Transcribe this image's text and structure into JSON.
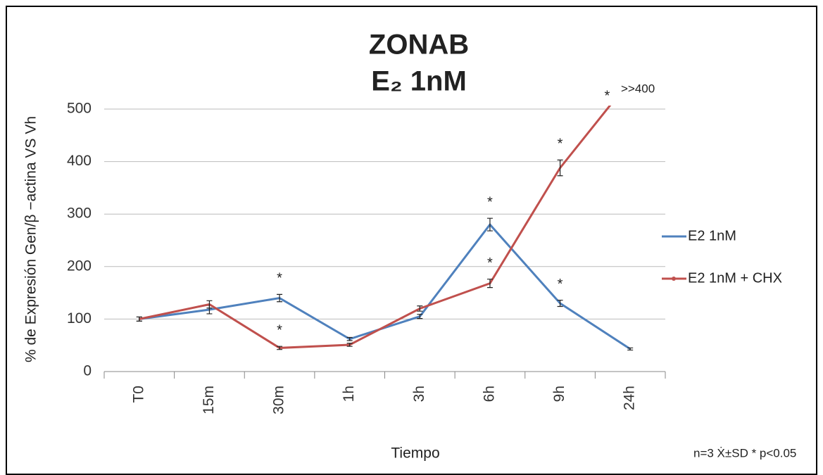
{
  "chart_data": {
    "type": "line",
    "title": [
      "ZONAB",
      "E₂ 1nM"
    ],
    "ylabel": "% de Expresión Gen/β −actina VS Vh",
    "xlabel": "Tiempo",
    "footnote": "n=3 Ẋ±SD * p<0.05",
    "annotation": ">>400",
    "marker": "*",
    "categories": [
      "T0",
      "15m",
      "30m",
      "1h",
      "3h",
      "6h",
      "9h",
      "24h"
    ],
    "series": [
      {
        "name": "E2 1nM",
        "color": "#4f81bd",
        "values": [
          100,
          118,
          140,
          62,
          105,
          280,
          130,
          43
        ],
        "errors": [
          4,
          8,
          7,
          3,
          4,
          12,
          6,
          2
        ],
        "significant": [
          false,
          false,
          true,
          false,
          false,
          true,
          true,
          false
        ]
      },
      {
        "name": "E2 1nM + CHX",
        "color": "#c0504d",
        "values": [
          100,
          128,
          45,
          51,
          120,
          168,
          388,
          555
        ],
        "errors": [
          4,
          7,
          3,
          3,
          5,
          8,
          15,
          null
        ],
        "significant": [
          false,
          false,
          true,
          false,
          false,
          true,
          true,
          true
        ]
      }
    ],
    "ylim": [
      0,
      500
    ],
    "yticks": [
      0,
      100,
      200,
      300,
      400,
      500
    ],
    "grid": true,
    "legend": "right"
  }
}
